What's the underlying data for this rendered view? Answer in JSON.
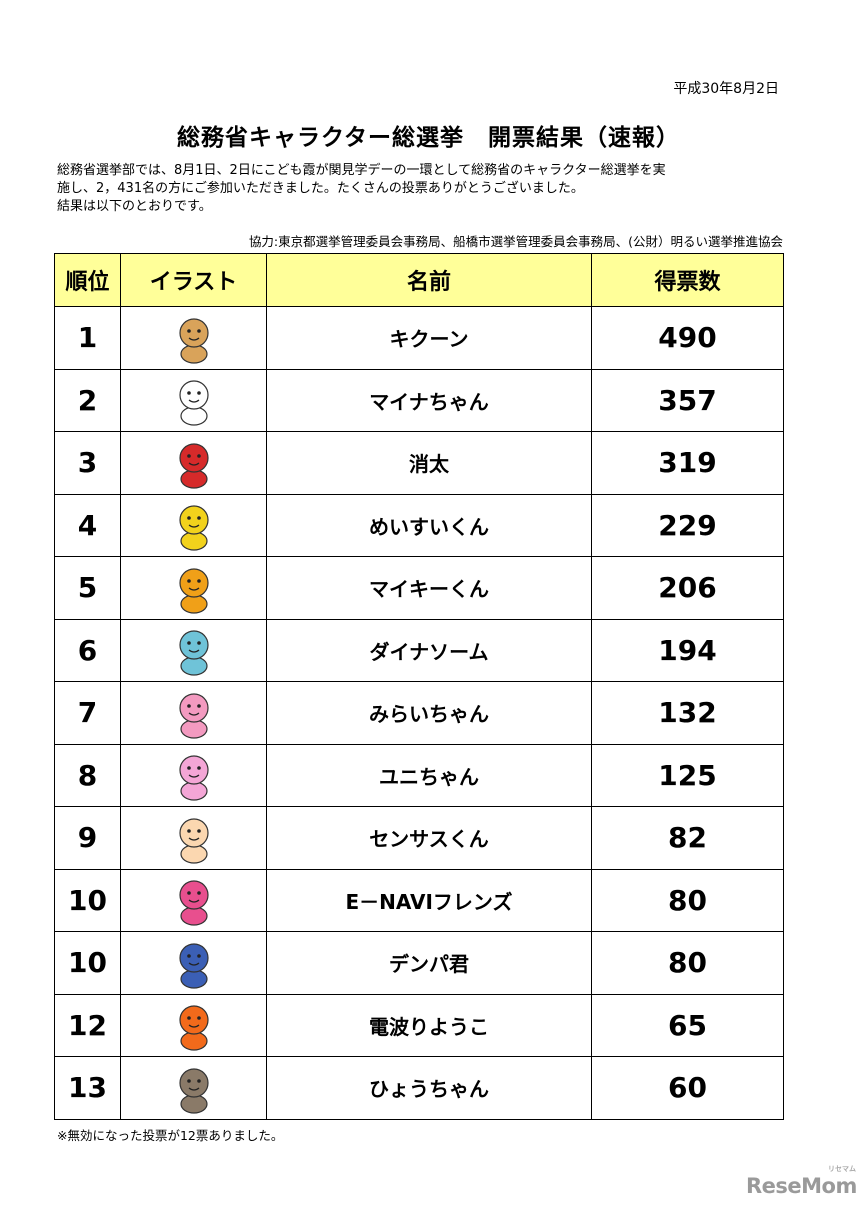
{
  "date": "平成30年8月2日",
  "title": "総務省キャラクター総選挙　開票結果（速報）",
  "intro": [
    "総務省選挙部では、8月1日、2日にこども霞が関見学デーの一環として総務省のキャラクター総選挙を実",
    "施し、2，431名の方にご参加いただきました。たくさんの投票ありがとうございました。",
    "結果は以下のとおりです。"
  ],
  "cooperation": "協力:東京都選挙管理委員会事務局、船橋市選挙管理委員会事務局、(公財）明るい選挙推進協会",
  "table": {
    "headers": {
      "rank": "順位",
      "illust": "イラスト",
      "name": "名前",
      "votes": "得票数"
    },
    "rows": [
      {
        "rank": "1",
        "name": "キクーン",
        "votes": "490",
        "icon": "dog-character-icon",
        "color": "#d9a35a"
      },
      {
        "rank": "2",
        "name": "マイナちゃん",
        "votes": "357",
        "icon": "rabbit-character-icon",
        "color": "#ffffff"
      },
      {
        "rank": "3",
        "name": "消太",
        "votes": "319",
        "icon": "firefighter-characters-icon",
        "color": "#d62a2a"
      },
      {
        "rank": "4",
        "name": "めいすいくん",
        "votes": "229",
        "icon": "winged-cat-character-icon",
        "color": "#f2d21c"
      },
      {
        "rank": "5",
        "name": "マイキーくん",
        "votes": "206",
        "icon": "dog-key-character-icon",
        "color": "#f0a018"
      },
      {
        "rank": "6",
        "name": "ダイナソーム",
        "votes": "194",
        "icon": "dinosaur-characters-icon",
        "color": "#6fc3d8"
      },
      {
        "rank": "7",
        "name": "みらいちゃん",
        "votes": "132",
        "icon": "girl-character-icon",
        "color": "#f39ac0"
      },
      {
        "rank": "8",
        "name": "ユニちゃん",
        "votes": "125",
        "icon": "pink-rabbit-character-icon",
        "color": "#f4a6d6"
      },
      {
        "rank": "9",
        "name": "センサスくん",
        "votes": "82",
        "icon": "baby-character-icon",
        "color": "#fbd7b0"
      },
      {
        "rank": "10",
        "name": "E－NAVIフレンズ",
        "votes": "80",
        "icon": "friends-characters-icon",
        "color": "#e84f8e"
      },
      {
        "rank": "10",
        "name": "デンパ君",
        "votes": "80",
        "icon": "boy-character-icon",
        "color": "#3b5fb5"
      },
      {
        "rank": "12",
        "name": "電波りようこ",
        "votes": "65",
        "icon": "flame-character-icon",
        "color": "#f26a1b"
      },
      {
        "rank": "13",
        "name": "ひょうちゃん",
        "votes": "60",
        "icon": "owl-character-icon",
        "color": "#8a7a68"
      }
    ]
  },
  "note": "※無効になった投票が12票ありました。",
  "watermark": {
    "text": "ReseMom",
    "ruby": "リセマム"
  }
}
